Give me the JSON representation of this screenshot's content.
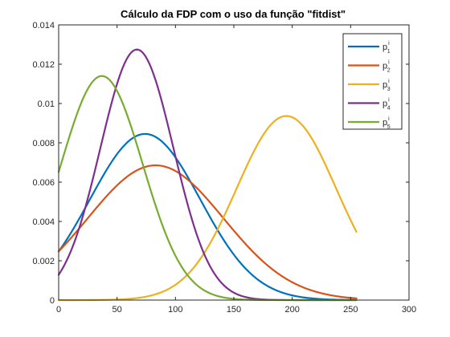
{
  "chart_data": {
    "type": "line",
    "title": "Cálculo da FDP com o uso da função \"fitdist\"",
    "xlabel": "",
    "ylabel": "",
    "xlim": [
      0,
      300
    ],
    "ylim": [
      0,
      0.014
    ],
    "x_ticks": [
      0,
      50,
      100,
      150,
      200,
      250,
      300
    ],
    "y_ticks": [
      0,
      0.002,
      0.004,
      0.006,
      0.008,
      0.01,
      0.012,
      0.014
    ],
    "x_tick_labels": [
      "0",
      "50",
      "100",
      "150",
      "200",
      "250",
      "300"
    ],
    "y_tick_labels": [
      "0",
      "0.002",
      "0.004",
      "0.006",
      "0.008",
      "0.01",
      "0.012",
      "0.014"
    ],
    "grid": false,
    "legend_position": "top-right",
    "x_range": [
      0,
      255
    ],
    "series": [
      {
        "name": "p",
        "sup": "i",
        "sub": "1",
        "color": "#0072BD",
        "distribution": "normal",
        "mean": 74,
        "std": 47.2
      },
      {
        "name": "p",
        "sup": "i",
        "sub": "2",
        "color": "#D95319",
        "distribution": "normal",
        "mean": 83,
        "std": 58.2
      },
      {
        "name": "p",
        "sup": "i",
        "sub": "3",
        "color": "#EDB120",
        "distribution": "normal",
        "mean": 195,
        "std": 42.6
      },
      {
        "name": "p",
        "sup": "i",
        "sub": "4",
        "color": "#7E2F8E",
        "distribution": "normal",
        "mean": 67,
        "std": 31.3
      },
      {
        "name": "p",
        "sup": "i",
        "sub": "5",
        "color": "#77AC30",
        "distribution": "normal",
        "mean": 37,
        "std": 35.0
      }
    ]
  }
}
